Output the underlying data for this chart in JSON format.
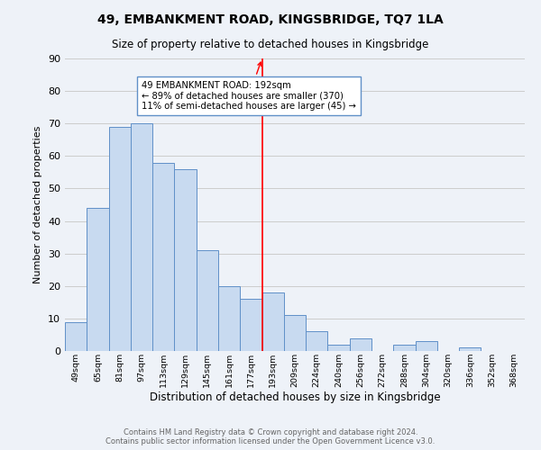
{
  "title": "49, EMBANKMENT ROAD, KINGSBRIDGE, TQ7 1LA",
  "subtitle": "Size of property relative to detached houses in Kingsbridge",
  "xlabel": "Distribution of detached houses by size in Kingsbridge",
  "ylabel": "Number of detached properties",
  "footer_line1": "Contains HM Land Registry data © Crown copyright and database right 2024.",
  "footer_line2": "Contains public sector information licensed under the Open Government Licence v3.0.",
  "bin_labels": [
    "49sqm",
    "65sqm",
    "81sqm",
    "97sqm",
    "113sqm",
    "129sqm",
    "145sqm",
    "161sqm",
    "177sqm",
    "193sqm",
    "209sqm",
    "224sqm",
    "240sqm",
    "256sqm",
    "272sqm",
    "288sqm",
    "304sqm",
    "320sqm",
    "336sqm",
    "352sqm",
    "368sqm"
  ],
  "bar_values": [
    9,
    44,
    69,
    70,
    58,
    56,
    31,
    20,
    16,
    18,
    11,
    6,
    2,
    4,
    0,
    2,
    3,
    0,
    1,
    0,
    0
  ],
  "bar_color": "#c8daf0",
  "bar_edge_color": "#6090c8",
  "ylim": [
    0,
    90
  ],
  "yticks": [
    0,
    10,
    20,
    30,
    40,
    50,
    60,
    70,
    80,
    90
  ],
  "property_line_index": 9,
  "property_line_label": "49 EMBANKMENT ROAD: 192sqm",
  "annotation_line1": "← 89% of detached houses are smaller (370)",
  "annotation_line2": "11% of semi-detached houses are larger (45) →",
  "grid_color": "#cccccc",
  "background_color": "#eef2f8"
}
